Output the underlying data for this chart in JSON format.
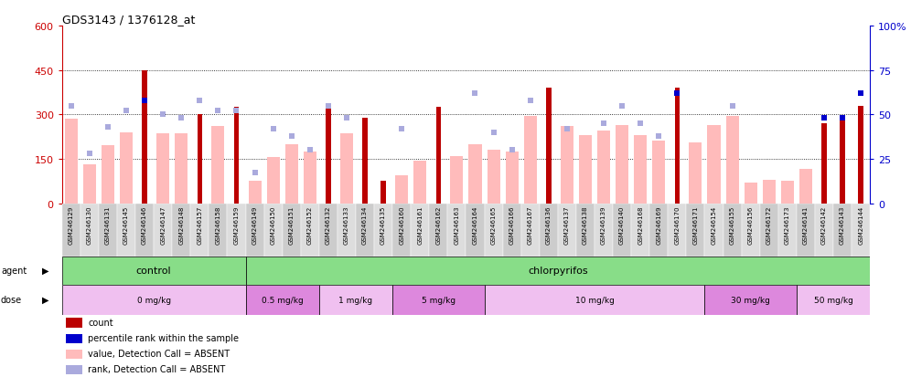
{
  "title": "GDS3143 / 1376128_at",
  "samples": [
    "GSM246129",
    "GSM246130",
    "GSM246131",
    "GSM246145",
    "GSM246146",
    "GSM246147",
    "GSM246148",
    "GSM246157",
    "GSM246158",
    "GSM246159",
    "GSM246149",
    "GSM246150",
    "GSM246151",
    "GSM246152",
    "GSM246132",
    "GSM246133",
    "GSM246134",
    "GSM246135",
    "GSM246160",
    "GSM246161",
    "GSM246162",
    "GSM246163",
    "GSM246164",
    "GSM246165",
    "GSM246166",
    "GSM246167",
    "GSM246136",
    "GSM246137",
    "GSM246138",
    "GSM246139",
    "GSM246140",
    "GSM246168",
    "GSM246169",
    "GSM246170",
    "GSM246171",
    "GSM246154",
    "GSM246155",
    "GSM246156",
    "GSM246172",
    "GSM246173",
    "GSM246141",
    "GSM246142",
    "GSM246143",
    "GSM246144"
  ],
  "count_values": [
    null,
    null,
    null,
    null,
    450,
    null,
    null,
    300,
    null,
    325,
    null,
    null,
    null,
    null,
    325,
    null,
    290,
    75,
    null,
    null,
    325,
    null,
    null,
    null,
    null,
    null,
    390,
    null,
    null,
    null,
    null,
    null,
    null,
    390,
    null,
    null,
    null,
    null,
    null,
    null,
    null,
    270,
    280,
    330
  ],
  "absent_value": [
    285,
    130,
    195,
    240,
    null,
    235,
    235,
    null,
    260,
    null,
    75,
    155,
    200,
    175,
    null,
    235,
    null,
    null,
    95,
    145,
    null,
    160,
    200,
    180,
    175,
    295,
    null,
    260,
    230,
    245,
    265,
    230,
    210,
    null,
    205,
    265,
    295,
    70,
    80,
    75,
    115,
    null,
    null,
    null
  ],
  "rank_value": [
    55,
    28,
    43,
    52,
    null,
    50,
    48,
    58,
    52,
    null,
    17,
    null,
    38,
    30,
    null,
    48,
    null,
    null,
    null,
    null,
    null,
    null,
    62,
    null,
    30,
    58,
    null,
    42,
    null,
    45,
    55,
    45,
    38,
    null,
    null,
    null,
    55,
    null,
    null,
    null,
    null,
    null,
    null,
    null
  ],
  "rank_absent": [
    null,
    null,
    null,
    null,
    null,
    null,
    null,
    null,
    null,
    52,
    null,
    42,
    null,
    null,
    55,
    null,
    null,
    null,
    42,
    null,
    null,
    null,
    null,
    40,
    null,
    null,
    null,
    null,
    null,
    null,
    null,
    null,
    null,
    null,
    null,
    null,
    null,
    null,
    null,
    null,
    null,
    null,
    null,
    null
  ],
  "percentile_rank": [
    null,
    null,
    null,
    null,
    58,
    null,
    null,
    null,
    null,
    null,
    null,
    null,
    null,
    null,
    null,
    null,
    null,
    null,
    null,
    null,
    null,
    null,
    null,
    null,
    null,
    null,
    null,
    null,
    null,
    null,
    null,
    null,
    null,
    62,
    null,
    null,
    null,
    null,
    null,
    null,
    null,
    48,
    48,
    62
  ],
  "doses": [
    {
      "label": "0 mg/kg",
      "start": 0,
      "end": 10
    },
    {
      "label": "0.5 mg/kg",
      "start": 10,
      "end": 14
    },
    {
      "label": "1 mg/kg",
      "start": 14,
      "end": 18
    },
    {
      "label": "5 mg/kg",
      "start": 18,
      "end": 23
    },
    {
      "label": "10 mg/kg",
      "start": 23,
      "end": 35
    },
    {
      "label": "30 mg/kg",
      "start": 35,
      "end": 40
    },
    {
      "label": "50 mg/kg",
      "start": 40,
      "end": 44
    }
  ],
  "color_count": "#bb0000",
  "color_absent_val": "#ffbbbb",
  "color_rank_present": "#0000cc",
  "color_rank_absent": "#aaaadd",
  "color_agent_green": "#88dd88",
  "color_dose_light": "#f0c0f0",
  "color_dose_dark": "#dd88dd",
  "bg_color": "#ffffff"
}
